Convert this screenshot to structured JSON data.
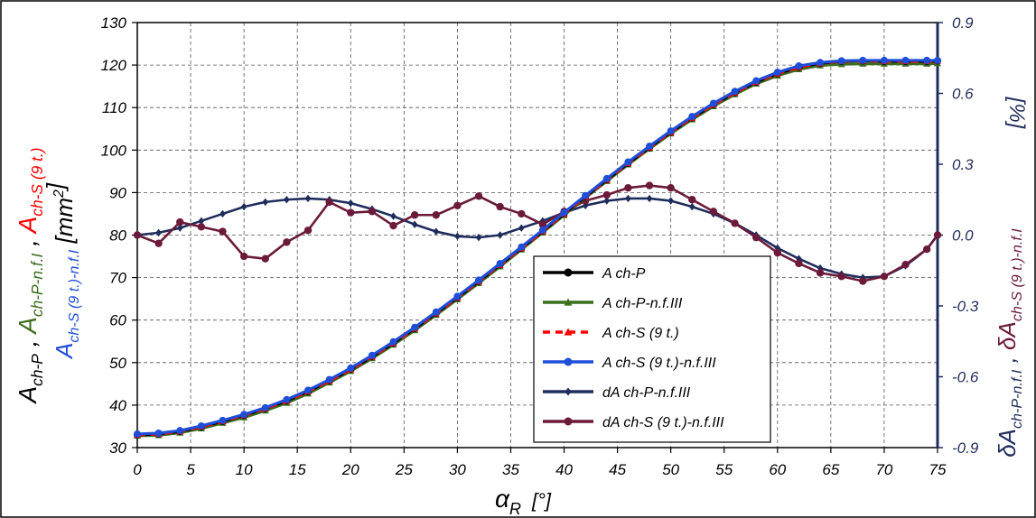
{
  "chart_data": {
    "type": "line",
    "x_axis": {
      "label_main": "α",
      "label_sub": "R",
      "label_unit": "[°]",
      "range": [
        0,
        75
      ],
      "ticks": [
        0,
        5,
        10,
        15,
        20,
        25,
        30,
        35,
        40,
        45,
        50,
        55,
        60,
        65,
        70,
        75
      ],
      "tick_labels": [
        "0",
        "5",
        "10",
        "15",
        "20",
        "25",
        "30",
        "35",
        "40",
        "45",
        "50",
        "55",
        "60",
        "65",
        "70",
        "75"
      ]
    },
    "y_left": {
      "range": [
        30,
        130
      ],
      "ticks": [
        30,
        40,
        50,
        60,
        70,
        80,
        90,
        100,
        110,
        120,
        130
      ],
      "tick_labels": [
        "30",
        "40",
        "50",
        "60",
        "70",
        "80",
        "90",
        "100",
        "110",
        "120",
        "130"
      ],
      "label_line1": "A ch-P , A ch-P-n.f.I , A ch-S (9 t.)",
      "label_line2": "A ch-S (9 t.)-n.f.I   [mm²]",
      "label_parts": [
        {
          "base": "A",
          "sub": "ch-P",
          "color": "#000000",
          "line": 1
        },
        {
          "base": ", ",
          "sub": "",
          "color": "#000000",
          "line": 1
        },
        {
          "base": "A",
          "sub": "ch-P-n.f.I",
          "color": "#3c6e1e",
          "line": 1
        },
        {
          "base": ", ",
          "sub": "",
          "color": "#000000",
          "line": 1
        },
        {
          "base": "A",
          "sub": "ch-S (9 t.)",
          "color": "#ff0000",
          "line": 1
        },
        {
          "base": "A",
          "sub": "ch-S (9 t.)-n.f.I",
          "color": "#1f4ed8",
          "line": 2
        },
        {
          "base": "  [mm",
          "sub": "",
          "color": "#000000",
          "line": 2
        },
        {
          "base": "2",
          "sub": "",
          "color": "#000000",
          "line": 2,
          "sup": true
        },
        {
          "base": "]",
          "sub": "",
          "color": "#000000",
          "line": 2
        }
      ]
    },
    "y_right": {
      "range": [
        -0.9,
        0.9
      ],
      "ticks": [
        -0.9,
        -0.6,
        -0.3,
        0.0,
        0.3,
        0.6,
        0.9
      ],
      "tick_labels": [
        "-0.9",
        "-0.6",
        "-0.3",
        "0.0",
        "0.3",
        "0.6",
        "0.9"
      ],
      "unit": "[%]",
      "label_parts": [
        {
          "base": "δA",
          "sub": "ch-P-n.f.I",
          "color": "#1f2d5c"
        },
        {
          "base": " , ",
          "sub": "",
          "color": "#1f2d5c"
        },
        {
          "base": "δA",
          "sub": "ch-S (9 t.)-n.f.I",
          "color": "#6b1a3a"
        }
      ],
      "color": "#1f2d5c"
    },
    "grid": true,
    "legend_position": "center-right",
    "series": [
      {
        "name": "A ch-P",
        "axis": "left",
        "color": "#000000",
        "dash": false,
        "marker": "circle",
        "x": [
          0,
          2,
          4,
          6,
          8,
          10,
          12,
          14,
          16,
          18,
          20,
          22,
          24,
          26,
          28,
          30,
          32,
          34,
          36,
          38,
          40,
          42,
          44,
          46,
          48,
          50,
          52,
          54,
          56,
          58,
          60,
          62,
          64,
          66,
          68,
          70,
          72,
          74,
          75
        ],
        "y": [
          33.0,
          33.2,
          33.8,
          34.9,
          36.2,
          37.6,
          39.2,
          41.0,
          43.2,
          45.7,
          48.4,
          51.4,
          54.6,
          58.0,
          61.6,
          65.3,
          69.1,
          73.0,
          76.9,
          80.9,
          85.0,
          89.0,
          93.0,
          96.9,
          100.6,
          104.2,
          107.6,
          110.7,
          113.5,
          116.0,
          118.0,
          119.5,
          120.4,
          120.9,
          121.0,
          120.9,
          120.9,
          120.9,
          121.0
        ]
      },
      {
        "name": "A ch-P-n.f.III",
        "axis": "left",
        "color": "#3c6e1e",
        "dash": false,
        "marker": "triangle",
        "x": [
          0,
          2,
          4,
          6,
          8,
          10,
          12,
          14,
          16,
          18,
          20,
          22,
          24,
          26,
          28,
          30,
          32,
          34,
          36,
          38,
          40,
          42,
          44,
          46,
          48,
          50,
          52,
          54,
          56,
          58,
          60,
          62,
          64,
          66,
          68,
          70,
          72,
          74,
          75
        ],
        "y": [
          32.8,
          32.9,
          33.5,
          34.5,
          35.8,
          37.1,
          38.7,
          40.5,
          42.7,
          45.3,
          48.0,
          51.0,
          54.2,
          57.6,
          61.2,
          64.9,
          68.7,
          72.6,
          76.6,
          80.6,
          84.7,
          88.8,
          92.7,
          96.6,
          100.3,
          103.9,
          107.2,
          110.3,
          113.1,
          115.6,
          117.5,
          119.0,
          119.9,
          120.2,
          120.3,
          120.3,
          120.3,
          120.3,
          120.4
        ]
      },
      {
        "name": "A ch-S (9 t.)",
        "axis": "left",
        "color": "#ff0000",
        "dash": true,
        "marker": "triangle",
        "x": [
          0,
          2,
          4,
          6,
          8,
          10,
          12,
          14,
          16,
          18,
          20,
          22,
          24,
          26,
          28,
          30,
          32,
          34,
          36,
          38,
          40,
          42,
          44,
          46,
          48,
          50,
          52,
          54,
          56,
          58,
          60,
          62,
          64,
          66,
          68,
          70,
          72,
          74,
          75
        ],
        "y": [
          33.0,
          33.2,
          33.8,
          34.9,
          36.2,
          37.6,
          39.2,
          41.0,
          43.2,
          45.7,
          48.4,
          51.4,
          54.6,
          58.0,
          61.6,
          65.3,
          69.1,
          73.0,
          76.9,
          80.9,
          85.0,
          89.0,
          93.0,
          96.9,
          100.6,
          104.2,
          107.6,
          110.7,
          113.5,
          116.0,
          118.0,
          119.5,
          120.4,
          120.9,
          121.0,
          120.9,
          120.9,
          120.9,
          121.0
        ]
      },
      {
        "name": "A ch-S (9 t.)-n.f.III",
        "axis": "left",
        "color": "#1f4ed8",
        "dash": false,
        "marker": "circle",
        "x": [
          0,
          2,
          4,
          6,
          8,
          10,
          12,
          14,
          16,
          18,
          20,
          22,
          24,
          26,
          28,
          30,
          32,
          34,
          36,
          38,
          40,
          42,
          44,
          46,
          48,
          50,
          52,
          54,
          56,
          58,
          60,
          62,
          64,
          66,
          68,
          70,
          72,
          74,
          75
        ],
        "y": [
          33.2,
          33.4,
          34.0,
          35.1,
          36.4,
          37.8,
          39.4,
          41.3,
          43.5,
          46.0,
          48.7,
          51.7,
          54.9,
          58.3,
          61.9,
          65.6,
          69.4,
          73.3,
          77.2,
          81.2,
          85.3,
          89.3,
          93.3,
          97.2,
          100.9,
          104.5,
          107.9,
          111.0,
          113.8,
          116.3,
          118.3,
          119.8,
          120.6,
          121.0,
          121.1,
          121.1,
          121.1,
          121.1,
          121.1
        ]
      },
      {
        "name": "dA ch-P-n.f.III",
        "axis": "right",
        "color": "#1f2d5c",
        "dash": false,
        "marker": "diamond",
        "x": [
          0,
          2,
          4,
          6,
          8,
          10,
          12,
          14,
          16,
          18,
          20,
          22,
          24,
          26,
          28,
          30,
          32,
          34,
          36,
          38,
          40,
          42,
          44,
          46,
          48,
          50,
          52,
          54,
          56,
          58,
          60,
          62,
          64,
          66,
          68,
          70,
          72,
          74,
          75
        ],
        "y": [
          0.0,
          0.01,
          0.03,
          0.06,
          0.09,
          0.12,
          0.14,
          0.15,
          0.155,
          0.15,
          0.135,
          0.11,
          0.08,
          0.045,
          0.015,
          -0.005,
          -0.01,
          0.0,
          0.03,
          0.06,
          0.095,
          0.125,
          0.145,
          0.155,
          0.155,
          0.145,
          0.12,
          0.09,
          0.05,
          0.0,
          -0.055,
          -0.1,
          -0.14,
          -0.165,
          -0.18,
          -0.175,
          -0.13,
          -0.06,
          0.0
        ]
      },
      {
        "name": "dA ch-S (9 t.)-n.f.III",
        "axis": "right",
        "color": "#6b1a3a",
        "dash": false,
        "marker": "circle",
        "x": [
          0,
          2,
          4,
          6,
          8,
          10,
          12,
          14,
          16,
          18,
          20,
          22,
          24,
          26,
          28,
          30,
          32,
          34,
          36,
          38,
          40,
          42,
          44,
          46,
          48,
          50,
          52,
          54,
          56,
          58,
          60,
          62,
          64,
          66,
          68,
          70,
          72,
          74,
          75
        ],
        "y": [
          0.0,
          -0.035,
          0.055,
          0.035,
          0.015,
          -0.09,
          -0.1,
          -0.03,
          0.02,
          0.14,
          0.095,
          0.1,
          0.04,
          0.085,
          0.085,
          0.125,
          0.165,
          0.12,
          0.09,
          0.045,
          0.1,
          0.145,
          0.17,
          0.2,
          0.21,
          0.2,
          0.15,
          0.1,
          0.05,
          -0.01,
          -0.075,
          -0.12,
          -0.16,
          -0.175,
          -0.195,
          -0.175,
          -0.125,
          -0.06,
          0.0
        ]
      }
    ]
  }
}
